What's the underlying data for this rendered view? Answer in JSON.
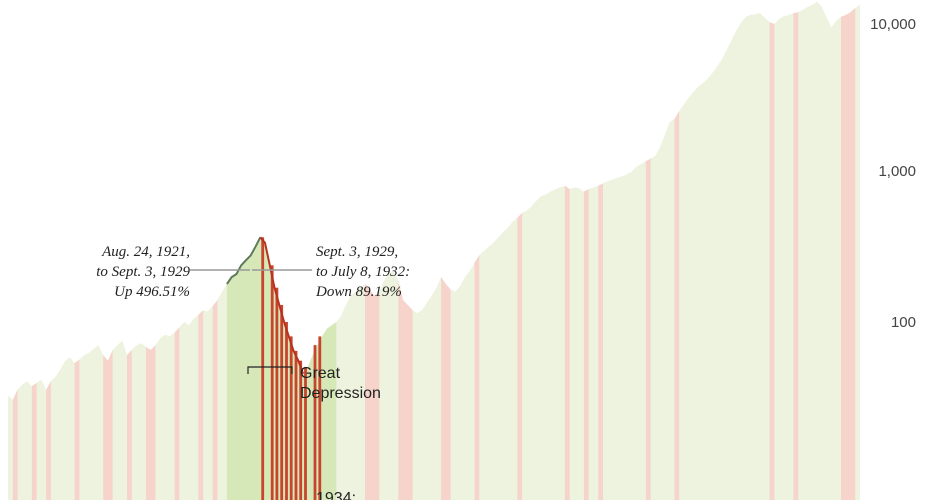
{
  "chart_data": {
    "type": "area",
    "title": "",
    "xlabel": "",
    "ylabel": "",
    "y_scale": "log",
    "y_ticks": [
      {
        "value": 10000,
        "label": "10,000"
      },
      {
        "value": 1000,
        "label": "1,000"
      },
      {
        "value": 100,
        "label": "100"
      }
    ],
    "ylim": [
      8.2,
      16000
    ],
    "grid": false,
    "colors": {
      "area_light": "#eef3df",
      "area_highlight": "#d6e8b8",
      "bear_band": "#f6d4cc",
      "crash_band": "#c8442c",
      "line_bull": "#5f7a5a",
      "line_crash": "#b8321f",
      "leader": "#999999"
    },
    "series": [
      {
        "values": [
          32,
          30,
          35,
          38,
          40,
          37,
          39,
          41,
          35,
          40,
          43,
          48,
          55,
          58,
          53,
          56,
          60,
          62,
          66,
          70,
          60,
          55,
          65,
          70,
          75,
          60,
          65,
          70,
          72,
          68,
          65,
          70,
          78,
          82,
          80,
          85,
          92,
          100,
          95,
          105,
          112,
          120,
          118,
          128,
          140,
          160,
          180,
          200,
          210,
          240,
          260,
          280,
          320,
          370,
          340,
          240,
          170,
          130,
          100,
          80,
          64,
          55,
          45,
          50,
          60,
          70,
          80,
          90,
          95,
          100,
          110,
          130,
          150,
          160,
          170,
          180,
          165,
          150,
          160,
          190,
          210,
          220,
          190,
          140,
          130,
          120,
          115,
          120,
          135,
          150,
          170,
          200,
          180,
          165,
          160,
          175,
          200,
          220,
          250,
          280,
          300,
          320,
          340,
          370,
          400,
          430,
          470,
          500,
          540,
          560,
          600,
          650,
          700,
          720,
          750,
          780,
          800,
          820,
          780,
          800,
          790,
          750,
          780,
          800,
          820,
          850,
          880,
          900,
          930,
          950,
          980,
          1020,
          1100,
          1150,
          1200,
          1250,
          1300,
          1500,
          1800,
          2200,
          2300,
          2600,
          2900,
          3200,
          3500,
          3800,
          4000,
          4300,
          4700,
          5200,
          5800,
          6700,
          7800,
          9000,
          10200,
          11200,
          11500,
          11600,
          11800,
          11000,
          10300,
          10000,
          10800,
          11300,
          11500,
          11800,
          12000,
          12500,
          13000,
          13500,
          14100,
          13000,
          11000,
          9500,
          10500,
          11200,
          11500,
          12000,
          12800,
          13500
        ]
      }
    ],
    "annotations": [
      {
        "lines": [
          "Aug. 24, 1921,",
          "to Sept. 3, 1929",
          "Up 496.51%"
        ]
      },
      {
        "lines": [
          "Sept. 3, 1929,",
          "to July 8, 1932:",
          "Down 89.19%"
        ]
      },
      {
        "lines": [
          "Great",
          "Depression"
        ]
      },
      {
        "lines": [
          "1934:"
        ]
      }
    ]
  }
}
